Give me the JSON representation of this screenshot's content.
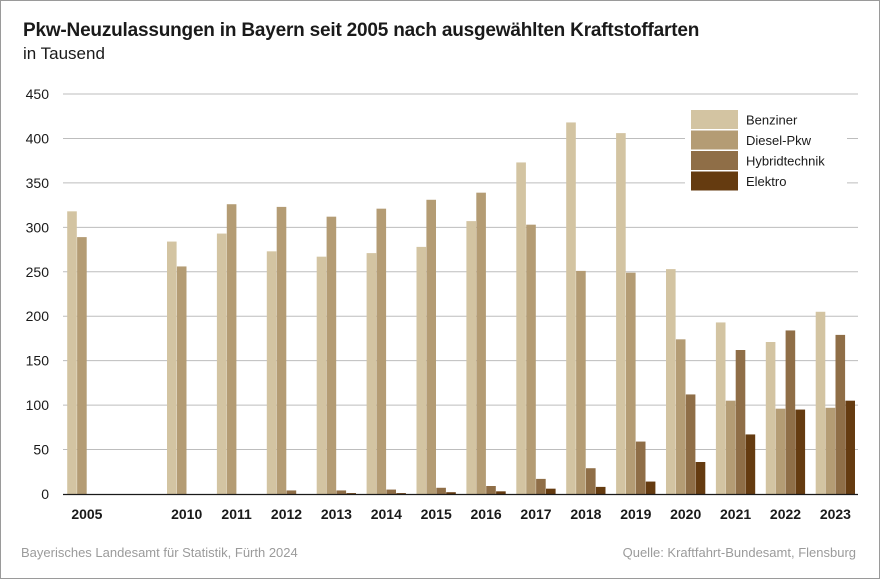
{
  "title": "Pkw-Neuzulassungen in Bayern seit 2005 nach ausgewählten Kraftstoffarten",
  "subtitle": "in Tausend",
  "footer": {
    "left": "Bayerisches Landesamt für Statistik, Fürth 2024",
    "right": "Quelle: Kraftfahrt-Bundesamt, Flensburg"
  },
  "chart_data": {
    "type": "bar",
    "categories": [
      "2005",
      "2010",
      "2011",
      "2012",
      "2013",
      "2014",
      "2015",
      "2016",
      "2017",
      "2018",
      "2019",
      "2020",
      "2021",
      "2022",
      "2023"
    ],
    "series": [
      {
        "name": "Benziner",
        "color": "#d3c4a2",
        "values": [
          318,
          284,
          293,
          273,
          267,
          271,
          278,
          307,
          373,
          418,
          406,
          253,
          193,
          171,
          205
        ]
      },
      {
        "name": "Diesel-Pkw",
        "color": "#b49c74",
        "values": [
          289,
          256,
          326,
          323,
          312,
          321,
          331,
          339,
          303,
          251,
          249,
          174,
          105,
          96,
          97
        ]
      },
      {
        "name": "Hybridtechnik",
        "color": "#8f6e47",
        "values": [
          0,
          0,
          0,
          4,
          4,
          5,
          7,
          9,
          17,
          29,
          59,
          112,
          162,
          184,
          179
        ]
      },
      {
        "name": "Elektro",
        "color": "#653b10",
        "values": [
          0,
          0,
          0,
          0,
          1,
          1,
          2,
          3,
          6,
          8,
          14,
          36,
          67,
          95,
          105
        ]
      }
    ],
    "ylim": [
      0,
      450
    ],
    "yticks": [
      0,
      50,
      100,
      150,
      200,
      250,
      300,
      350,
      400,
      450
    ],
    "grid": true,
    "legend_position": "top-right"
  }
}
